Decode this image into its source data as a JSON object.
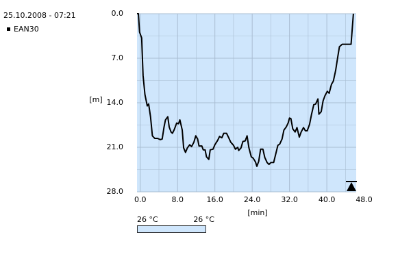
{
  "chart_data": {
    "type": "line",
    "title": "25.10.2008 - 07:21",
    "ylabel": "[m]",
    "xlabel": "[min]",
    "x": [
      -0.7,
      -0.4,
      -0.15,
      0.3,
      0.6,
      1.0,
      1.5,
      1.8,
      2.2,
      2.6,
      3.1,
      3.7,
      4.3,
      4.7,
      5.1,
      5.4,
      5.9,
      6.2,
      6.6,
      6.9,
      7.3,
      7.8,
      8.2,
      8.5,
      9.0,
      9.3,
      9.7,
      10.1,
      10.6,
      11.0,
      11.5,
      11.9,
      12.3,
      12.6,
      13.2,
      13.5,
      13.9,
      14.2,
      14.7,
      15.0,
      15.6,
      16.0,
      16.6,
      17.0,
      17.5,
      17.9,
      18.5,
      18.9,
      19.4,
      20.0,
      20.4,
      20.9,
      21.1,
      21.6,
      22.0,
      22.5,
      22.9,
      23.3,
      23.8,
      24.2,
      24.7,
      25.0,
      25.4,
      25.8,
      26.3,
      26.7,
      27.2,
      27.6,
      28.0,
      28.6,
      29.1,
      29.5,
      29.9,
      30.4,
      30.8,
      31.3,
      31.7,
      32.0,
      32.3,
      32.7,
      33.2,
      33.6,
      34.1,
      34.5,
      35.0,
      35.4,
      35.8,
      36.3,
      36.7,
      37.2,
      37.6,
      38.1,
      38.3,
      38.8,
      39.2,
      39.6,
      40.1,
      40.5,
      41.0,
      41.4,
      41.9,
      42.3,
      42.7,
      43.3,
      45.2,
      45.7
    ],
    "series": [
      {
        "name": "EAN30",
        "color": "#000000",
        "values": [
          0,
          0,
          2.9,
          3.8,
          9.7,
          12.7,
          14.5,
          14.2,
          16.2,
          19.2,
          19.6,
          19.6,
          19.8,
          19.7,
          17.8,
          16.7,
          16.2,
          17.8,
          18.6,
          18.8,
          18.2,
          17.2,
          17.3,
          16.7,
          18.3,
          21.1,
          21.8,
          21.1,
          20.6,
          20.9,
          20.2,
          19.2,
          19.7,
          20.8,
          20.8,
          21.4,
          21.4,
          22.5,
          22.9,
          21.4,
          21.3,
          20.6,
          19.9,
          19.3,
          19.5,
          18.8,
          18.8,
          19.4,
          20.2,
          20.7,
          21.3,
          21.0,
          21.5,
          21.1,
          20.1,
          20.0,
          19.2,
          21.1,
          22.5,
          22.7,
          23.3,
          24.0,
          23.2,
          21.3,
          21.3,
          22.6,
          23.4,
          23.7,
          23.4,
          23.4,
          21.9,
          20.7,
          20.5,
          19.7,
          18.3,
          17.8,
          17.2,
          16.4,
          16.5,
          18.1,
          18.6,
          17.9,
          19.4,
          18.6,
          17.9,
          18.4,
          18.4,
          17.4,
          15.9,
          14.3,
          14.2,
          13.4,
          15.8,
          15.4,
          13.7,
          12.9,
          12.2,
          12.5,
          11.1,
          10.6,
          8.9,
          7.0,
          5.2,
          4.8,
          4.8,
          0
        ]
      }
    ],
    "xlim": [
      -0.7,
      46.3
    ],
    "ylim": [
      0,
      28
    ],
    "inverted_y": true,
    "xticks": [
      {
        "value": 0,
        "label": "0.0"
      },
      {
        "value": 8,
        "label": "8.0"
      },
      {
        "value": 16,
        "label": "16.0"
      },
      {
        "value": 24,
        "label": "24.0"
      },
      {
        "value": 32,
        "label": "32.0"
      },
      {
        "value": 40,
        "label": "40.0"
      },
      {
        "value": 48,
        "label": "48.0"
      }
    ],
    "yticks": [
      {
        "value": 0,
        "label": "0.0"
      },
      {
        "value": 7,
        "label": "7.0"
      },
      {
        "value": 14,
        "label": "14.0"
      },
      {
        "value": 21,
        "label": "21.0"
      },
      {
        "value": 28,
        "label": "28.0"
      }
    ],
    "grid": true,
    "temperature_labels": [
      "26 °C",
      "26 °C"
    ]
  }
}
